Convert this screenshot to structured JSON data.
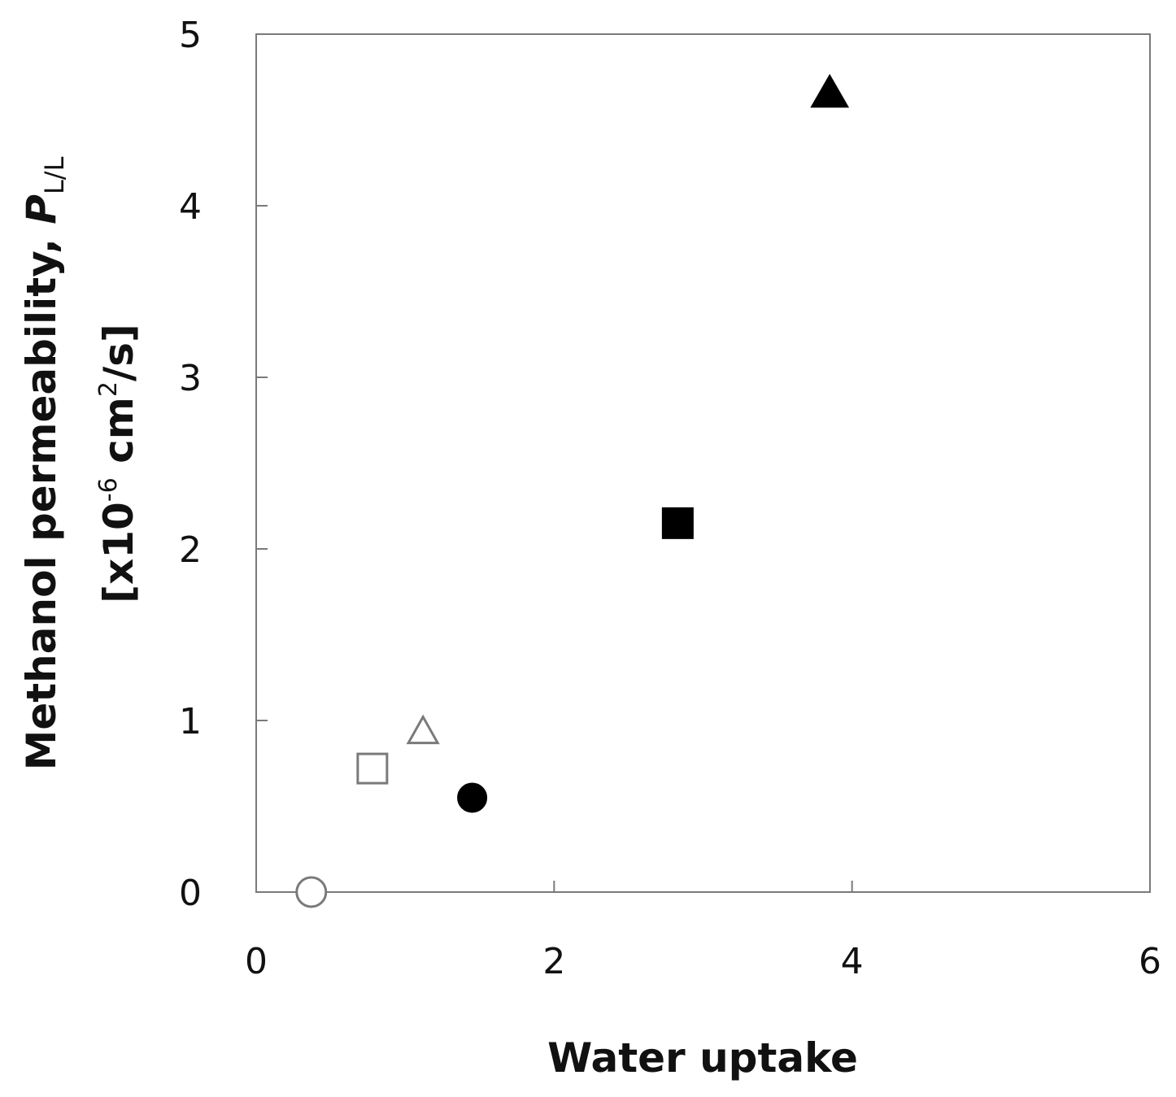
{
  "chart_data": {
    "type": "scatter",
    "title": "",
    "xlabel": "Water uptake",
    "ylabel": {
      "line1_main": "Methanol permeability, ",
      "line1_italic": "P",
      "line1_sub": "L/L",
      "line2_pre": "[x10",
      "line2_sup1": "-6",
      "line2_mid": " cm",
      "line2_sup2": "2",
      "line2_post": "/s]"
    },
    "xlim": [
      0,
      6
    ],
    "ylim": [
      0,
      5
    ],
    "x_ticks": [
      "0",
      "2",
      "4",
      "6"
    ],
    "y_ticks": [
      "0",
      "1",
      "2",
      "3",
      "4",
      "5"
    ],
    "grid": false,
    "legend": "none",
    "series": [
      {
        "marker": "circle-open",
        "x": 0.37,
        "y": 0.0
      },
      {
        "marker": "square-open",
        "x": 0.78,
        "y": 0.72
      },
      {
        "marker": "triangle-open",
        "x": 1.12,
        "y": 0.93
      },
      {
        "marker": "circle-filled",
        "x": 1.45,
        "y": 0.55
      },
      {
        "marker": "square-filled",
        "x": 2.83,
        "y": 2.15
      },
      {
        "marker": "triangle-filled",
        "x": 3.85,
        "y": 4.65
      }
    ]
  }
}
